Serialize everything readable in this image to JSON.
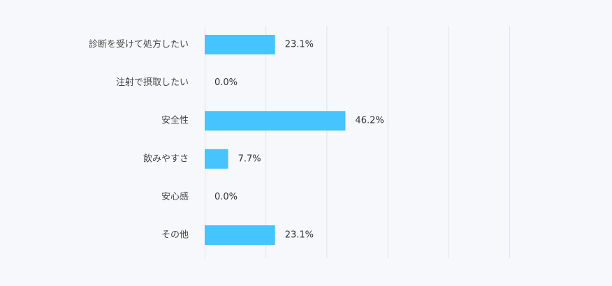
{
  "chart_data": {
    "type": "bar",
    "orientation": "horizontal",
    "categories": [
      "診断を受けて処方したい",
      "注射で摂取したい",
      "安全性",
      "飲みやすさ",
      "安心感",
      "その他"
    ],
    "values": [
      23.1,
      0.0,
      46.2,
      7.7,
      0.0,
      23.1
    ],
    "value_labels": [
      "23.1%",
      "0.0%",
      "46.2%",
      "7.7%",
      "0.0%",
      "23.1%"
    ],
    "xlim": [
      0,
      100
    ],
    "grid": true,
    "legend": "none",
    "colors": {
      "bar": "#45c4fd",
      "background": "#f7f8fb"
    }
  }
}
